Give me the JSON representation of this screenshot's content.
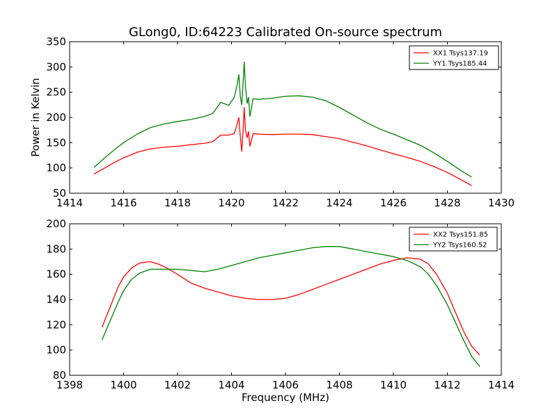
{
  "chart_data": [
    {
      "type": "line",
      "title": "GLong0, ID:64223 Calibrated On-source spectrum",
      "xlabel": "",
      "ylabel": "Power in Kelvin",
      "xlim": [
        1414,
        1430
      ],
      "ylim": [
        50,
        350
      ],
      "xticks": [
        1414,
        1416,
        1418,
        1420,
        1422,
        1424,
        1426,
        1428,
        1430
      ],
      "yticks": [
        50,
        100,
        150,
        200,
        250,
        300,
        350
      ],
      "legend_position": "top-right",
      "series": [
        {
          "name": "XX1 Tsys137.19",
          "color": "#ff0000",
          "x": [
            1414.9,
            1415.3,
            1415.7,
            1416.0,
            1416.5,
            1417.0,
            1417.5,
            1418.0,
            1418.5,
            1419.0,
            1419.3,
            1419.6,
            1419.9,
            1420.1,
            1420.2,
            1420.27,
            1420.33,
            1420.38,
            1420.43,
            1420.47,
            1420.52,
            1420.58,
            1420.63,
            1420.68,
            1420.8,
            1421.0,
            1421.5,
            1422.0,
            1422.5,
            1423.0,
            1423.5,
            1424.0,
            1424.5,
            1425.0,
            1425.5,
            1426.0,
            1426.5,
            1427.0,
            1427.5,
            1428.0,
            1428.5,
            1428.9
          ],
          "y": [
            88,
            100,
            112,
            120,
            131,
            138,
            141,
            143,
            146,
            149,
            152,
            165,
            165,
            168,
            185,
            200,
            160,
            133,
            175,
            220,
            175,
            160,
            172,
            143,
            168,
            167,
            166,
            167,
            167,
            166,
            162,
            158,
            151,
            144,
            136,
            128,
            121,
            113,
            103,
            91,
            77,
            65
          ]
        },
        {
          "name": "YY1 Tsys185.44",
          "color": "#008000",
          "x": [
            1414.9,
            1415.3,
            1415.7,
            1416.0,
            1416.5,
            1417.0,
            1417.5,
            1418.0,
            1418.5,
            1419.0,
            1419.3,
            1419.6,
            1419.9,
            1420.1,
            1420.2,
            1420.27,
            1420.33,
            1420.38,
            1420.43,
            1420.47,
            1420.52,
            1420.58,
            1420.63,
            1420.68,
            1420.8,
            1421.0,
            1421.5,
            1422.0,
            1422.5,
            1423.0,
            1423.5,
            1424.0,
            1424.5,
            1425.0,
            1425.5,
            1426.0,
            1426.5,
            1427.0,
            1427.5,
            1428.0,
            1428.5,
            1428.9
          ],
          "y": [
            101,
            120,
            138,
            150,
            167,
            180,
            187,
            192,
            196,
            202,
            208,
            230,
            224,
            240,
            262,
            285,
            240,
            225,
            270,
            310,
            260,
            228,
            240,
            202,
            237,
            236,
            238,
            242,
            243,
            240,
            233,
            220,
            205,
            190,
            177,
            167,
            156,
            145,
            130,
            113,
            95,
            82
          ]
        }
      ]
    },
    {
      "type": "line",
      "title": "",
      "xlabel": "Frequency (MHz)",
      "ylabel": "",
      "xlim": [
        1398,
        1414
      ],
      "ylim": [
        80,
        200
      ],
      "xticks": [
        1398,
        1400,
        1402,
        1404,
        1406,
        1408,
        1410,
        1412,
        1414
      ],
      "yticks": [
        80,
        100,
        120,
        140,
        160,
        180,
        200
      ],
      "legend_position": "top-right",
      "series": [
        {
          "name": "XX2 Tsys151.85",
          "color": "#ff0000",
          "x": [
            1399.2,
            1399.5,
            1399.8,
            1400.0,
            1400.3,
            1400.6,
            1401.0,
            1401.3,
            1401.6,
            1402.0,
            1402.5,
            1403.0,
            1403.5,
            1404.0,
            1404.5,
            1405.0,
            1405.5,
            1406.0,
            1406.5,
            1407.0,
            1407.5,
            1408.0,
            1408.5,
            1409.0,
            1409.5,
            1410.0,
            1410.5,
            1411.0,
            1411.3,
            1411.6,
            1412.0,
            1412.3,
            1412.6,
            1412.9,
            1413.2
          ],
          "y": [
            118,
            134,
            150,
            158,
            165,
            169,
            170,
            168,
            165,
            160,
            153,
            149,
            146,
            143,
            141,
            140,
            140,
            141,
            144,
            148,
            152,
            156,
            160,
            164,
            168,
            171,
            173,
            172,
            168,
            160,
            145,
            130,
            115,
            103,
            96
          ]
        },
        {
          "name": "YY2 Tsys160.52",
          "color": "#008000",
          "x": [
            1399.2,
            1399.5,
            1399.8,
            1400.0,
            1400.3,
            1400.6,
            1401.0,
            1401.3,
            1401.6,
            1402.0,
            1402.5,
            1403.0,
            1403.5,
            1404.0,
            1404.5,
            1405.0,
            1405.5,
            1406.0,
            1406.5,
            1407.0,
            1407.5,
            1408.0,
            1408.5,
            1409.0,
            1409.5,
            1410.0,
            1410.5,
            1411.0,
            1411.3,
            1411.6,
            1412.0,
            1412.3,
            1412.6,
            1412.9,
            1413.2
          ],
          "y": [
            108,
            123,
            138,
            147,
            156,
            161,
            164,
            164,
            164,
            164,
            163,
            162,
            164,
            167,
            170,
            173,
            175,
            177,
            179,
            181,
            182,
            182,
            180,
            178,
            176,
            174,
            171,
            166,
            160,
            151,
            136,
            122,
            108,
            95,
            87
          ]
        }
      ]
    }
  ]
}
